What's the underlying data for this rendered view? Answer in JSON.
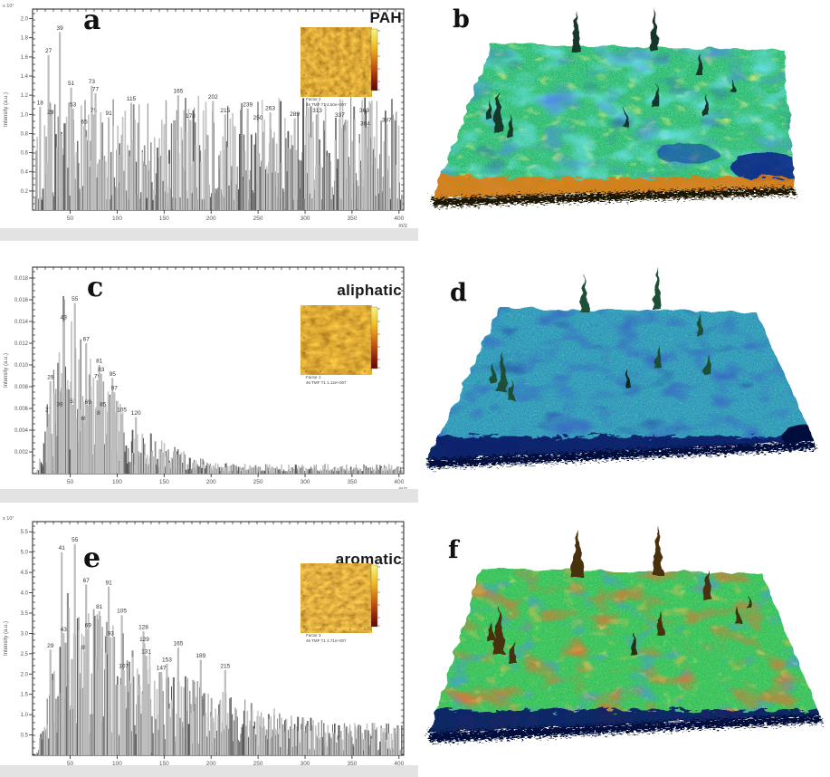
{
  "figure": {
    "description": "Six-panel figure: ToF-SIMS mass spectra (a,c,e) with AFM-like chemical map insets, and 3D rendered surface topography maps (b,d,f)",
    "xlabel": "m/z",
    "ylabel": "Intensity (a.u.)"
  },
  "panels": {
    "a": {
      "letter": "a",
      "class_label": "PAH",
      "y_exponent": "x 10⁷",
      "inset_caption_1": "Factor 2",
      "inset_caption_2": "46  TMF T1  4.50e+007"
    },
    "b": {
      "letter": "b",
      "palette": [
        "#3fca7f",
        "#2fd8e8",
        "#1b47c8",
        "#ffe23a",
        "#e07c14"
      ]
    },
    "c": {
      "letter": "c",
      "class_label": "aliphatic",
      "y_exponent": "",
      "inset_caption_1": "Factor 1",
      "inset_caption_2": "46  TMF T1  1.12e+007"
    },
    "d": {
      "letter": "d",
      "palette": [
        "#2fa8bd",
        "#4ed877",
        "#0b2f9e",
        "#0a1c66"
      ]
    },
    "e": {
      "letter": "e",
      "class_label": "aromatic",
      "y_exponent": "x 10⁷",
      "inset_caption_1": "Factor 3",
      "inset_caption_2": "46  TMF T1  4.71e+007"
    },
    "f": {
      "letter": "f",
      "palette": [
        "#3ecb5e",
        "#e03c0c",
        "#f2801c",
        "#1446c8",
        "#0a1c66"
      ]
    }
  },
  "chart_data": [
    {
      "type": "bar",
      "panel": "a",
      "title": "PAH",
      "xlabel": "m/z",
      "ylabel": "Intensity (a.u.)",
      "y_exponent": "x 10⁷",
      "xlim": [
        10,
        405
      ],
      "ylim": [
        0,
        2.1
      ],
      "x_ticks": [
        50,
        100,
        150,
        200,
        250,
        300,
        350,
        400
      ],
      "y_ticks": [
        "0.2",
        "0.4",
        "0.6",
        "0.8",
        "1.0",
        "1.2",
        "1.4",
        "1.6",
        "1.8",
        "2.0"
      ],
      "env": "flat",
      "peaks": [
        [
          18,
          1.08
        ],
        [
          27,
          1.62
        ],
        [
          29,
          0.98
        ],
        [
          39,
          1.86
        ],
        [
          51,
          1.28
        ],
        [
          53,
          1.06
        ],
        [
          65,
          0.88
        ],
        [
          73,
          1.3
        ],
        [
          75,
          1.0
        ],
        [
          77,
          1.22
        ],
        [
          91,
          0.97
        ],
        [
          115,
          1.12
        ],
        [
          165,
          1.2
        ],
        [
          178,
          0.94
        ],
        [
          202,
          1.14
        ],
        [
          215,
          1.0
        ],
        [
          239,
          1.06
        ],
        [
          250,
          0.92
        ],
        [
          263,
          1.02
        ],
        [
          289,
          0.96
        ],
        [
          313,
          1.0
        ],
        [
          337,
          0.95
        ],
        [
          363,
          1.0
        ],
        [
          364,
          0.86
        ],
        [
          387,
          0.9
        ]
      ]
    },
    {
      "type": "bar",
      "panel": "c",
      "title": "aliphatic",
      "xlabel": "m/z",
      "ylabel": "Intensity (a.u.)",
      "y_exponent": "",
      "xlim": [
        10,
        405
      ],
      "ylim": [
        0,
        0.019
      ],
      "x_ticks": [
        50,
        100,
        150,
        200,
        250,
        300,
        350,
        400
      ],
      "y_ticks": [
        "0.002",
        "0.004",
        "0.006",
        "0.008",
        "0.010",
        "0.012",
        "0.014",
        "0.016",
        "0.018"
      ],
      "env": "decay",
      "peaks": [
        [
          27,
          0.0055
        ],
        [
          29,
          0.0085
        ],
        [
          39,
          0.006
        ],
        [
          43,
          0.014
        ],
        [
          53,
          0.0063
        ],
        [
          55,
          0.0157
        ],
        [
          65,
          0.0047
        ],
        [
          67,
          0.012
        ],
        [
          69,
          0.0062
        ],
        [
          79,
          0.0086
        ],
        [
          81,
          0.01
        ],
        [
          82,
          0.0052
        ],
        [
          83,
          0.0092
        ],
        [
          85,
          0.006
        ],
        [
          95,
          0.0088
        ],
        [
          97,
          0.0075
        ],
        [
          105,
          0.0055
        ],
        [
          120,
          0.0052
        ]
      ]
    },
    {
      "type": "bar",
      "panel": "e",
      "title": "aromatic",
      "xlabel": "m/z",
      "ylabel": "Intensity (a.u.)",
      "y_exponent": "x 10⁷",
      "xlim": [
        10,
        405
      ],
      "ylim": [
        0,
        5.75
      ],
      "x_ticks": [
        50,
        100,
        150,
        200,
        250,
        300,
        350,
        400
      ],
      "y_ticks": [
        "0.5",
        "1.0",
        "1.5",
        "2.0",
        "2.5",
        "3.0",
        "3.5",
        "4.0",
        "4.5",
        "5.0",
        "5.5"
      ],
      "env": "slow",
      "peaks": [
        [
          29,
          2.6
        ],
        [
          41,
          5.0
        ],
        [
          43,
          3.0
        ],
        [
          55,
          5.2
        ],
        [
          65,
          2.55
        ],
        [
          67,
          4.2
        ],
        [
          69,
          3.1
        ],
        [
          81,
          3.55
        ],
        [
          91,
          4.15
        ],
        [
          93,
          2.9
        ],
        [
          105,
          3.45
        ],
        [
          107,
          2.1
        ],
        [
          128,
          3.05
        ],
        [
          129,
          2.75
        ],
        [
          131,
          2.45
        ],
        [
          147,
          2.05
        ],
        [
          153,
          2.25
        ],
        [
          165,
          2.65
        ],
        [
          189,
          2.35
        ],
        [
          215,
          2.1
        ]
      ]
    }
  ]
}
